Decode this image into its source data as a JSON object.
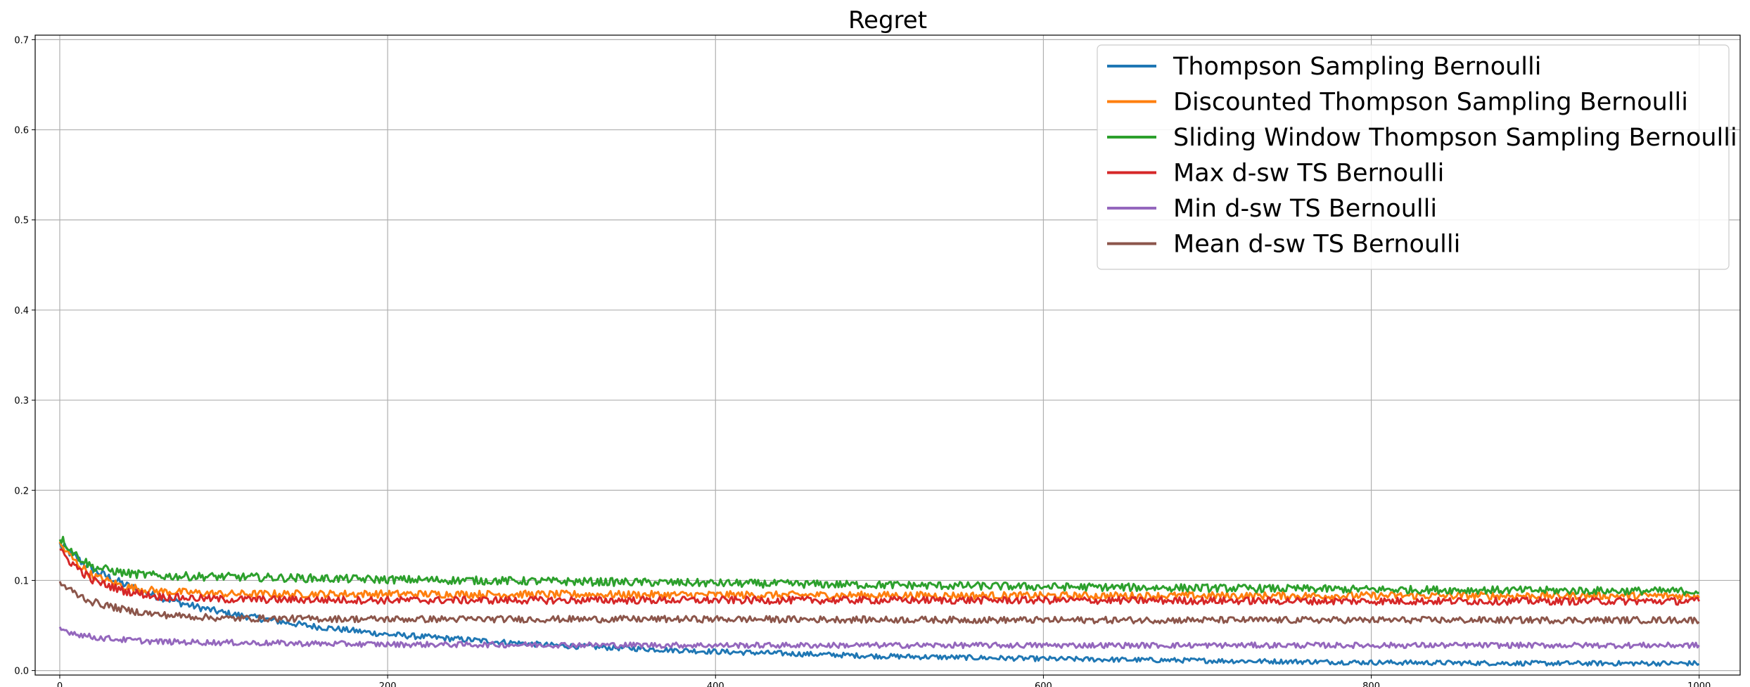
{
  "chart_data": {
    "type": "line",
    "title": "Regret",
    "xlabel": "",
    "ylabel": "",
    "xlim": [
      -15,
      1025
    ],
    "ylim": [
      -0.005,
      0.705
    ],
    "x_range": [
      0,
      1000
    ],
    "x_ticks": [
      0,
      200,
      400,
      600,
      800,
      1000
    ],
    "x_tick_labels": [
      "0",
      "200",
      "400",
      "600",
      "800",
      "1000"
    ],
    "y_ticks": [
      0.0,
      0.1,
      0.2,
      0.3,
      0.4,
      0.5,
      0.6,
      0.7
    ],
    "y_tick_labels": [
      "0.0",
      "0.1",
      "0.2",
      "0.3",
      "0.4",
      "0.5",
      "0.6",
      "0.7"
    ],
    "grid": true,
    "legend_position": "top-right",
    "series": [
      {
        "name": "Thompson Sampling Bernoulli",
        "color": "#1f77b4",
        "x": [
          0,
          10,
          20,
          40,
          60,
          80,
          100,
          150,
          200,
          300,
          400,
          500,
          600,
          700,
          800,
          900,
          1000
        ],
        "values": [
          0.14,
          0.125,
          0.112,
          0.095,
          0.082,
          0.072,
          0.064,
          0.05,
          0.04,
          0.028,
          0.021,
          0.016,
          0.013,
          0.011,
          0.009,
          0.008,
          0.008
        ]
      },
      {
        "name": "Discounted Thompson Sampling Bernoulli",
        "color": "#ff7f0e",
        "x": [
          0,
          10,
          20,
          40,
          60,
          100,
          200,
          400,
          600,
          800,
          1000
        ],
        "values": [
          0.14,
          0.12,
          0.105,
          0.093,
          0.088,
          0.085,
          0.085,
          0.084,
          0.083,
          0.083,
          0.083
        ]
      },
      {
        "name": "Sliding Window Thompson Sampling Bernoulli",
        "color": "#2ca02c",
        "x": [
          0,
          10,
          20,
          40,
          60,
          100,
          200,
          400,
          600,
          800,
          1000
        ],
        "values": [
          0.148,
          0.128,
          0.115,
          0.108,
          0.105,
          0.104,
          0.101,
          0.097,
          0.093,
          0.09,
          0.088
        ]
      },
      {
        "name": "Max d-sw TS Bernoulli",
        "color": "#d62728",
        "x": [
          0,
          10,
          20,
          40,
          60,
          100,
          200,
          400,
          600,
          800,
          1000
        ],
        "values": [
          0.132,
          0.115,
          0.1,
          0.088,
          0.082,
          0.079,
          0.078,
          0.078,
          0.078,
          0.077,
          0.077
        ]
      },
      {
        "name": "Min d-sw TS Bernoulli",
        "color": "#9467bd",
        "x": [
          0,
          10,
          20,
          40,
          60,
          100,
          200,
          400,
          600,
          800,
          1000
        ],
        "values": [
          0.046,
          0.041,
          0.037,
          0.034,
          0.032,
          0.031,
          0.029,
          0.028,
          0.028,
          0.028,
          0.028
        ]
      },
      {
        "name": "Mean d-sw TS Bernoulli",
        "color": "#8c564b",
        "x": [
          0,
          10,
          20,
          40,
          60,
          100,
          200,
          400,
          600,
          800,
          1000
        ],
        "values": [
          0.097,
          0.085,
          0.076,
          0.067,
          0.062,
          0.058,
          0.057,
          0.057,
          0.056,
          0.056,
          0.056
        ]
      }
    ]
  }
}
